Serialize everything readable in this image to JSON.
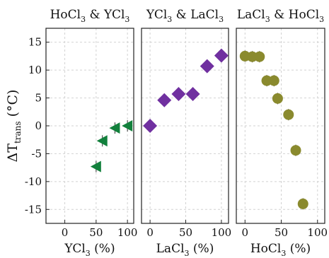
{
  "chart_data": [
    {
      "type": "scatter",
      "title": "HoCl",
      "title_sub1": "3",
      "title_mid": " & YCl",
      "title_sub2": "3",
      "xlabel": "YCl",
      "xlabel_sub": "3",
      "xlabel_suffix": " (%)",
      "ylabel": "ΔT",
      "ylabel_sub": "trans",
      "ylabel_suffix": " (°C)",
      "xlim": [
        -30,
        110
      ],
      "ylim": [
        -17.5,
        17.5
      ],
      "xticks": [
        0,
        50,
        100
      ],
      "yticks": [
        -15,
        -10,
        -5,
        0,
        5,
        10,
        15
      ],
      "marker": "triangle-left",
      "color": "#12803c",
      "x": [
        50,
        60,
        80,
        100
      ],
      "y": [
        -7.3,
        -2.7,
        -0.4,
        0.0
      ]
    },
    {
      "type": "scatter",
      "title": "YCl",
      "title_sub1": "3",
      "title_mid": " & LaCl",
      "title_sub2": "3",
      "xlabel": "LaCl",
      "xlabel_sub": "3",
      "xlabel_suffix": " (%)",
      "xlim": [
        -12,
        110
      ],
      "ylim": [
        -17.5,
        17.5
      ],
      "xticks": [
        0,
        50,
        100
      ],
      "marker": "diamond",
      "color": "#7030a0",
      "x": [
        0,
        20,
        40,
        60,
        80,
        100
      ],
      "y": [
        0.0,
        4.6,
        5.7,
        5.7,
        10.7,
        12.6
      ]
    },
    {
      "type": "scatter",
      "title": "LaCl",
      "title_sub1": "3",
      "title_mid": " & HoCl",
      "title_sub2": "3",
      "xlabel": "HoCl",
      "xlabel_sub": "3",
      "xlabel_suffix": " (%)",
      "xlim": [
        -12,
        110
      ],
      "ylim": [
        -17.5,
        17.5
      ],
      "xticks": [
        0,
        50,
        100
      ],
      "marker": "circle",
      "color": "#8a8a2e",
      "x": [
        0,
        10,
        20,
        30,
        40,
        45,
        60,
        70,
        80
      ],
      "y": [
        12.5,
        12.4,
        12.4,
        8.1,
        8.1,
        4.9,
        2.0,
        -4.4,
        -14.0
      ]
    }
  ]
}
